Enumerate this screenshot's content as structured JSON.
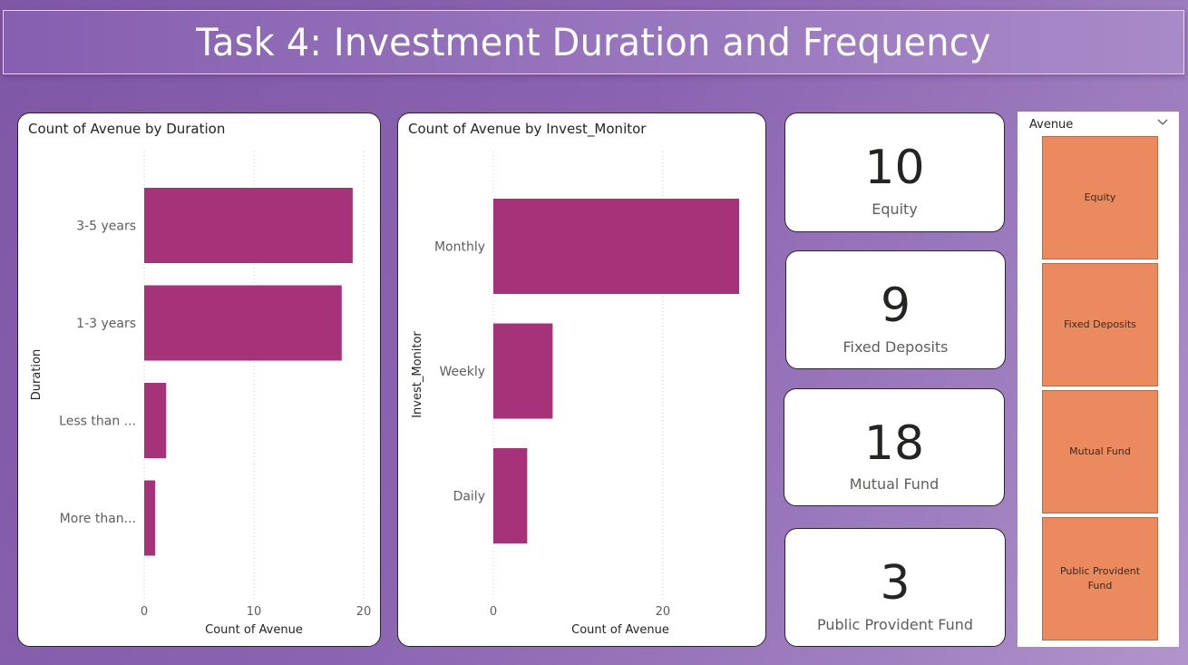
{
  "banner": {
    "title": "Task 4: Investment Duration and Frequency"
  },
  "chart_data": [
    {
      "type": "bar",
      "orientation": "horizontal",
      "title": "Count of Avenue by Duration",
      "xlabel": "Count of Avenue",
      "ylabel": "Duration",
      "categories": [
        "3-5 years",
        "1-3 years",
        "Less than ...",
        "More than..."
      ],
      "values": [
        19,
        18,
        2,
        1
      ],
      "xlim": [
        0,
        20
      ],
      "xticks": [
        "0",
        "10",
        "20"
      ],
      "xtick_values": [
        0,
        10,
        20
      ],
      "color": "#a6337a",
      "grid": "vertical dotted"
    },
    {
      "type": "bar",
      "orientation": "horizontal",
      "title": "Count of Avenue by Invest_Monitor",
      "xlabel": "Count of Avenue",
      "ylabel": "Invest_Monitor",
      "categories": [
        "Monthly",
        "Weekly",
        "Daily"
      ],
      "values": [
        29,
        7,
        4
      ],
      "xlim": [
        0,
        29
      ],
      "xticks": [
        "0",
        "20"
      ],
      "xtick_values": [
        0,
        20
      ],
      "color": "#a6337a",
      "grid": "vertical dotted"
    }
  ],
  "kpis": [
    {
      "value": "10",
      "label": "Equity"
    },
    {
      "value": "9",
      "label": "Fixed Deposits"
    },
    {
      "value": "18",
      "label": "Mutual Fund"
    },
    {
      "value": "3",
      "label": "Public Provident Fund"
    }
  ],
  "slicer": {
    "header": "Avenue",
    "icon": "chevron-down-icon",
    "tile_color": "#ea8a5e",
    "options": [
      "Equity",
      "Fixed Deposits",
      "Mutual Fund",
      "Public Provident Fund"
    ]
  }
}
